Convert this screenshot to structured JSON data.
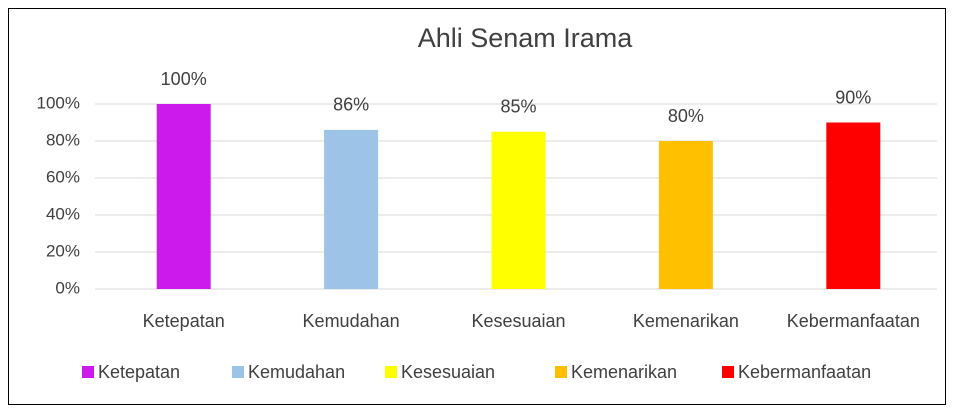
{
  "chart_data": {
    "type": "bar",
    "title": "Ahli Senam Irama",
    "categories": [
      "Ketepatan",
      "Kemudahan",
      "Kesesuaian",
      "Kemenarikan",
      "Kebermanfaatan"
    ],
    "values": [
      100,
      86,
      85,
      80,
      90
    ],
    "value_labels": [
      "100%",
      "86%",
      "85%",
      "80%",
      "90%"
    ],
    "colors": [
      "#cc1aec",
      "#9dc3e6",
      "#ffff00",
      "#ffc000",
      "#ff0000"
    ],
    "ylim": [
      0,
      100
    ],
    "yticks": [
      {
        "value": 0,
        "label": "0%"
      },
      {
        "value": 20,
        "label": "20%"
      },
      {
        "value": 40,
        "label": "40%"
      },
      {
        "value": 60,
        "label": "60%"
      },
      {
        "value": 80,
        "label": "80%"
      },
      {
        "value": 100,
        "label": "100%"
      }
    ],
    "grid": true,
    "legend": "bottom"
  }
}
